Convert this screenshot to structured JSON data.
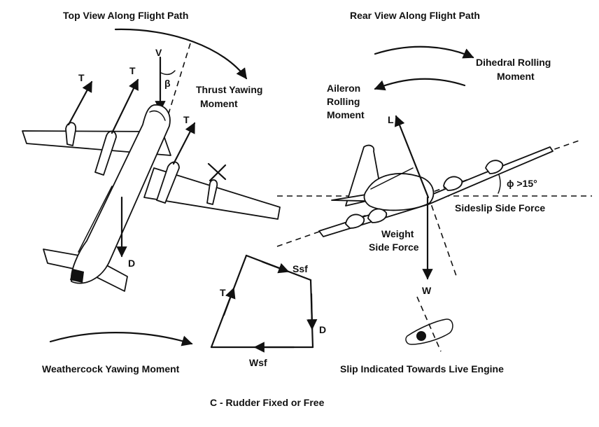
{
  "top_view": {
    "title": "Top View Along Flight Path",
    "velocity_symbol": "V",
    "sideslip_symbol": "β",
    "thrust_symbol": "T",
    "drag_symbol": "D",
    "thrust_yaw_label_1": "Thrust Yawing",
    "thrust_yaw_label_2": "Moment",
    "weathercock_label": "Weathercock Yawing Moment"
  },
  "rear_view": {
    "title": "Rear View Along Flight Path",
    "dihedral_label_1": "Dihedral  Rolling",
    "dihedral_label_2": "Moment",
    "aileron_label_1": "Aileron",
    "aileron_label_2": "Rolling",
    "aileron_label_3": "Moment",
    "lift_symbol": "L",
    "weight_symbol": "W",
    "bank_angle": "ϕ  >15°",
    "sideslip_side_force": "Sideslip Side Force",
    "weight_side_force_1": "Weight",
    "weight_side_force_2": "Side Force",
    "slip_indicator_label": "Slip Indicated Towards Live Engine"
  },
  "force_polygon": {
    "ssf": "Ssf",
    "t": "T",
    "d": "D",
    "wsf": "Wsf",
    "caption": "C - Rudder Fixed or Free"
  }
}
